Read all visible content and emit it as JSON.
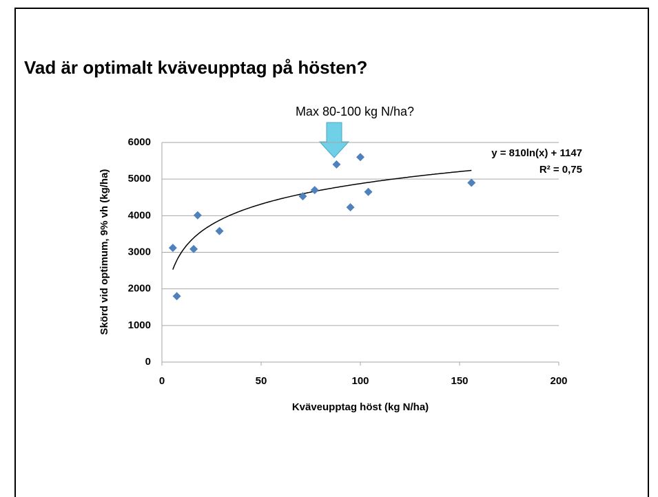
{
  "slide_title": "Vad är optimalt kväveupptag på hösten?",
  "chart_data": {
    "type": "scatter",
    "annotation": "Max 80-100 kg N/ha?",
    "x_label": "Kväveupptag höst (kg N/ha)",
    "y_label": "Skörd vid optimum, 9% vh (kg/ha)",
    "series": [
      {
        "color": "#4f81bd",
        "x": [
          5.5,
          7.5,
          16,
          18,
          29,
          71,
          77,
          88,
          95,
          100,
          104,
          156
        ],
        "values": [
          3120,
          1800,
          3090,
          4010,
          3580,
          4530,
          4700,
          5400,
          4230,
          5600,
          4650,
          4900
        ]
      }
    ],
    "trendline": {
      "type": "log",
      "equation": "y = 810ln(x) + 1147",
      "r_squared": "R² = 0,75",
      "coefficients": [
        810,
        1147
      ],
      "color": "#000000"
    },
    "xlim": [
      0,
      200
    ],
    "xticks": [
      0,
      50,
      100,
      150,
      200
    ],
    "ylim": [
      0,
      6000
    ],
    "yticks": [
      0,
      1000,
      2000,
      3000,
      4000,
      5000,
      6000
    ],
    "grid": true
  }
}
